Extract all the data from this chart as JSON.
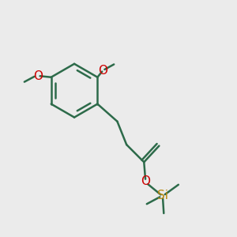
{
  "bg_color": "#ebebeb",
  "bond_color": "#2d6b4a",
  "oxygen_color": "#cc0000",
  "silicon_color": "#b8860b",
  "bond_width": 1.8,
  "font_size": 10,
  "fig_width": 3.0,
  "fig_height": 3.0,
  "dpi": 100,
  "xlim": [
    0.0,
    1.0
  ],
  "ylim": [
    0.0,
    1.0
  ]
}
